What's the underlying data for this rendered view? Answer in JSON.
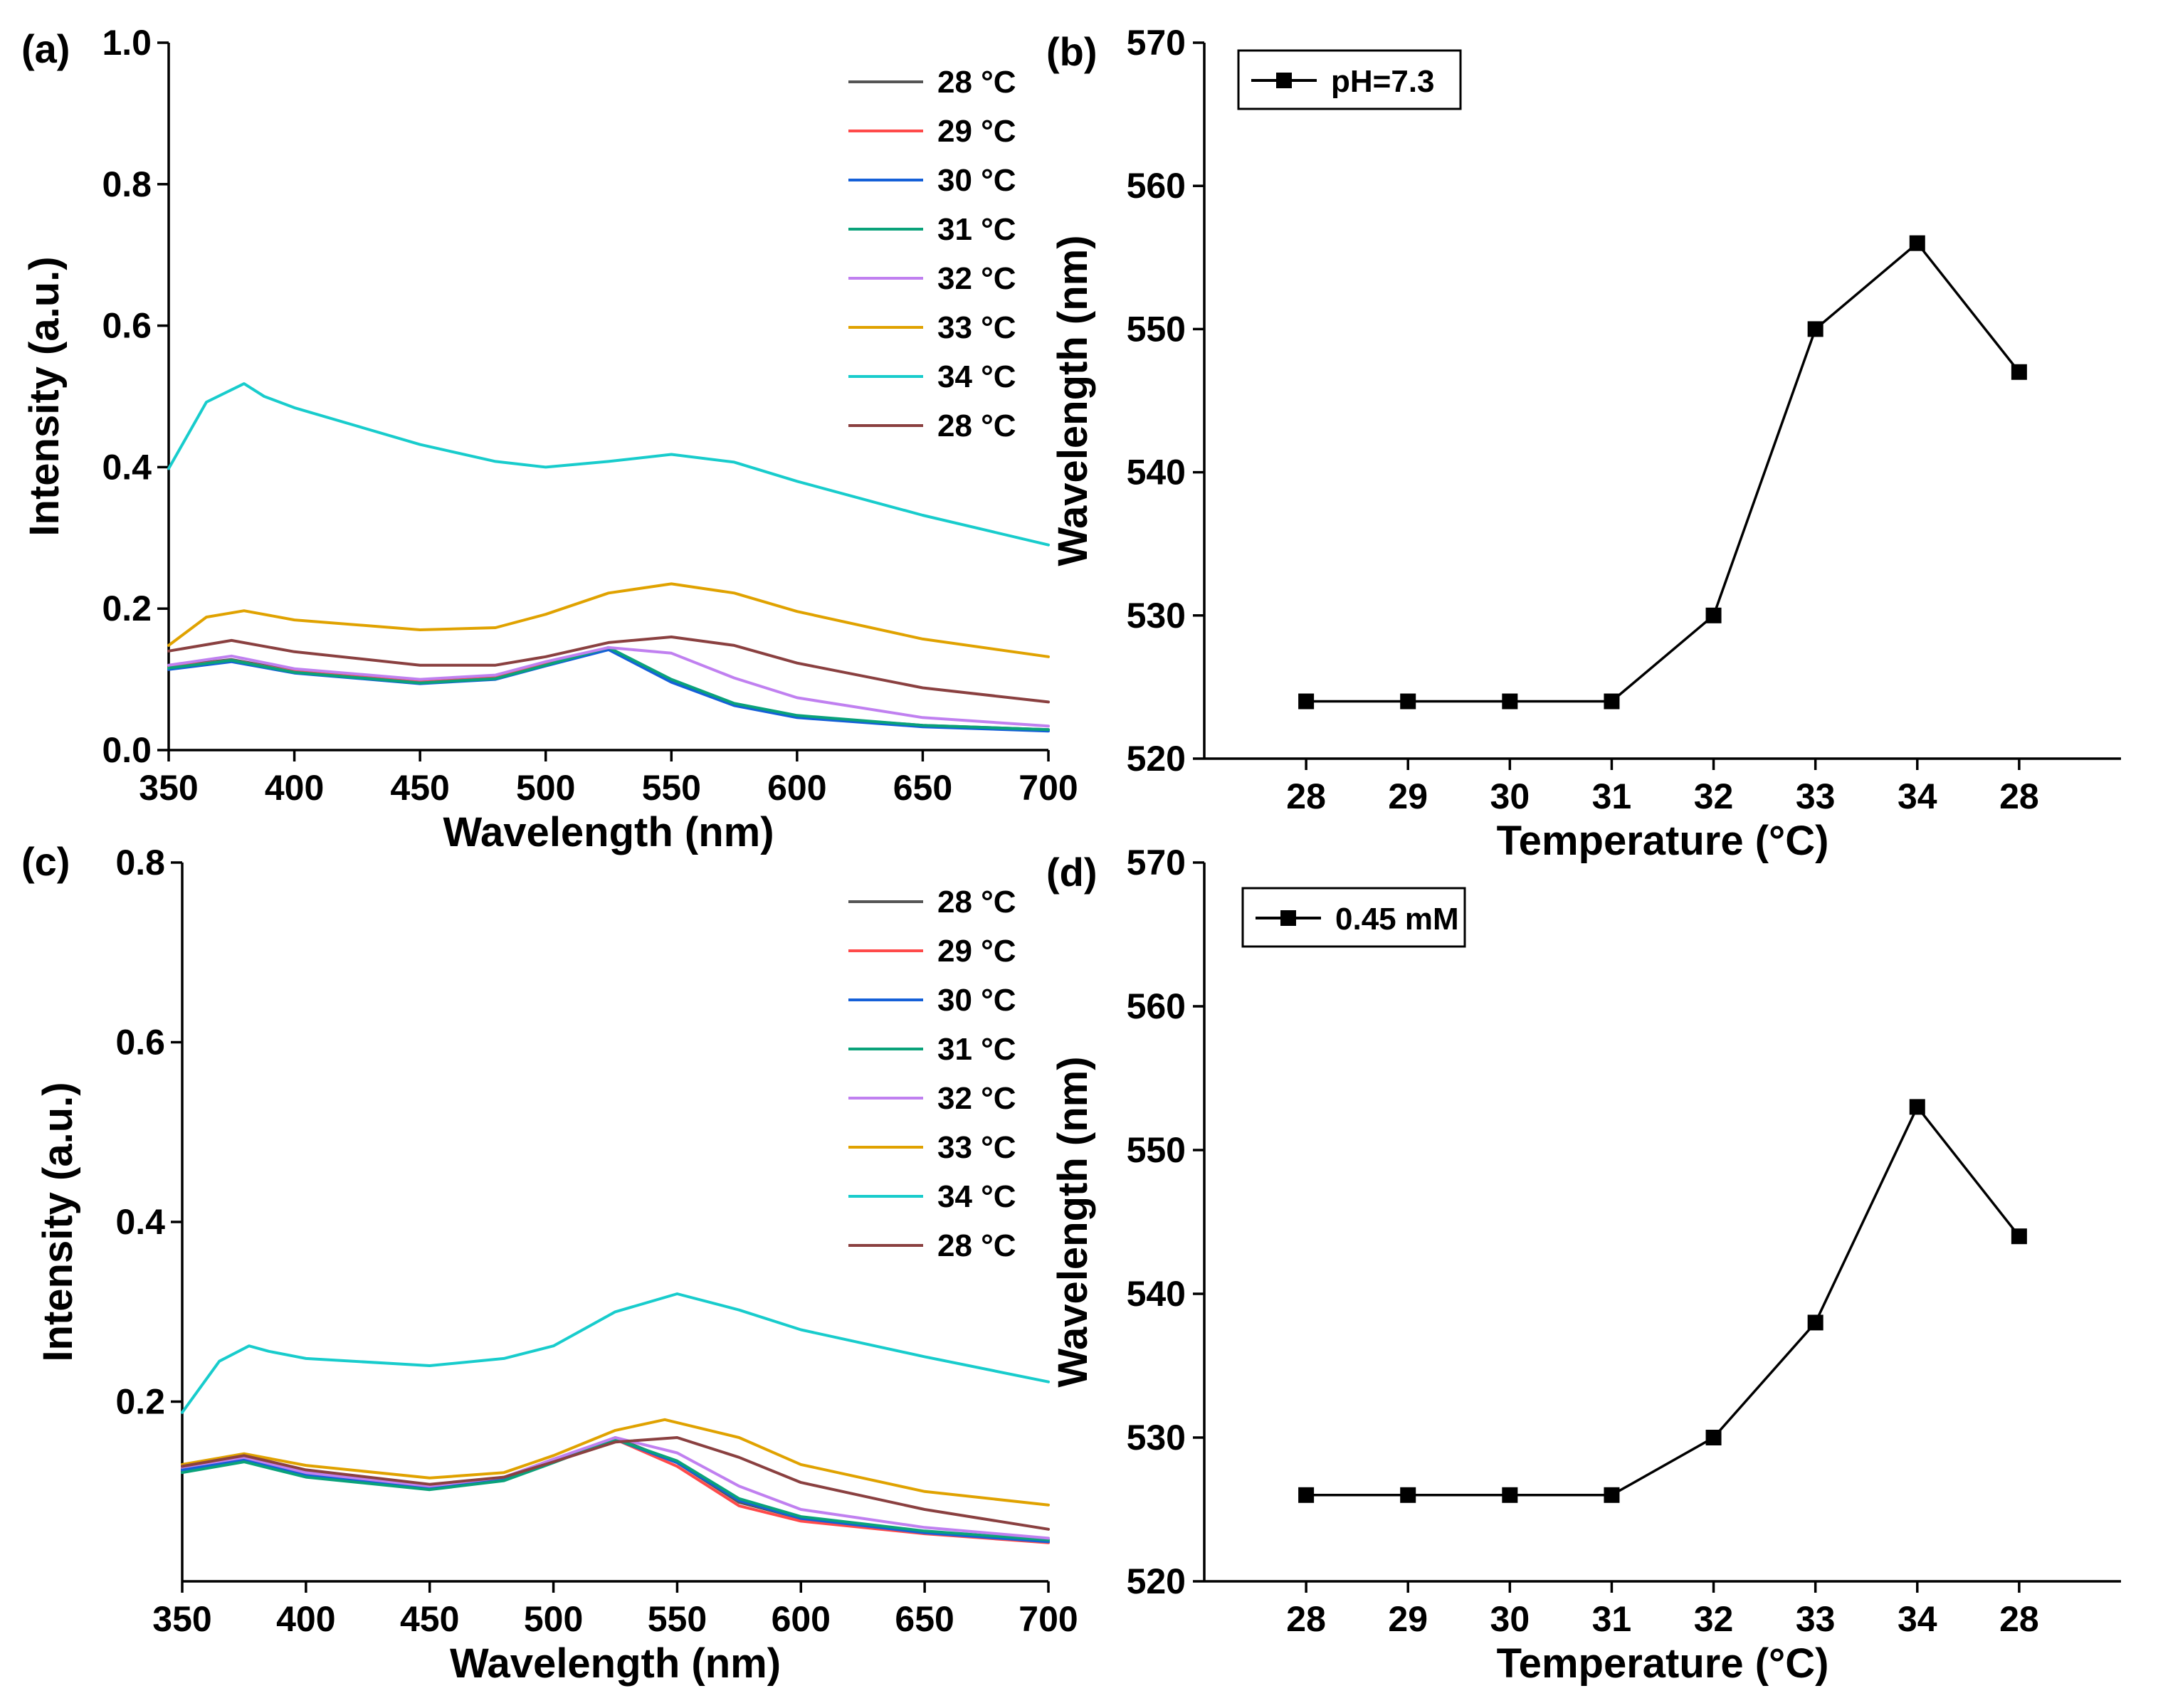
{
  "chart_data": [
    {
      "panel": "(a)",
      "type": "line",
      "xlabel": "Wavelength (nm)",
      "ylabel": "Intensity (a.u.)",
      "xlim": [
        350,
        700
      ],
      "ylim": [
        0.0,
        1.0
      ],
      "xticks": [
        350,
        400,
        450,
        500,
        550,
        600,
        650,
        700
      ],
      "yticks": [
        0.0,
        0.2,
        0.4,
        0.6,
        0.8,
        1.0
      ],
      "ytick_labels": [
        "0.0",
        "0.2",
        "0.4",
        "0.6",
        "0.8",
        "1.0"
      ],
      "legend_position": "top-right",
      "series": [
        {
          "name": "28 °C",
          "color": "#555555",
          "x": [
            350,
            375,
            400,
            450,
            480,
            500,
            525,
            550,
            575,
            600,
            650,
            700
          ],
          "y": [
            0.118,
            0.128,
            0.112,
            0.097,
            0.103,
            0.122,
            0.145,
            0.098,
            0.065,
            0.048,
            0.035,
            0.029
          ]
        },
        {
          "name": "29 °C",
          "color": "#ff4a4a",
          "x": [
            350,
            375,
            400,
            450,
            480,
            500,
            525,
            550,
            575,
            600,
            650,
            700
          ],
          "y": [
            0.117,
            0.127,
            0.111,
            0.096,
            0.102,
            0.121,
            0.144,
            0.097,
            0.064,
            0.047,
            0.034,
            0.028
          ]
        },
        {
          "name": "30 °C",
          "color": "#1560d8",
          "x": [
            350,
            375,
            400,
            450,
            480,
            500,
            525,
            550,
            575,
            600,
            650,
            700
          ],
          "y": [
            0.114,
            0.125,
            0.109,
            0.094,
            0.1,
            0.119,
            0.142,
            0.096,
            0.063,
            0.046,
            0.033,
            0.027
          ]
        },
        {
          "name": "31 °C",
          "color": "#0aa27a",
          "x": [
            350,
            375,
            400,
            450,
            480,
            500,
            525,
            550,
            575,
            600,
            650,
            700
          ],
          "y": [
            0.116,
            0.127,
            0.11,
            0.095,
            0.101,
            0.12,
            0.145,
            0.1,
            0.066,
            0.049,
            0.035,
            0.029
          ]
        },
        {
          "name": "32 °C",
          "color": "#c080f0",
          "x": [
            350,
            375,
            400,
            450,
            480,
            500,
            525,
            550,
            575,
            600,
            650,
            700
          ],
          "y": [
            0.12,
            0.133,
            0.115,
            0.1,
            0.106,
            0.125,
            0.145,
            0.137,
            0.102,
            0.074,
            0.046,
            0.034
          ]
        },
        {
          "name": "33 °C",
          "color": "#e0a200",
          "x": [
            350,
            365,
            380,
            400,
            450,
            480,
            500,
            525,
            550,
            575,
            600,
            650,
            700
          ],
          "y": [
            0.148,
            0.188,
            0.197,
            0.184,
            0.17,
            0.173,
            0.192,
            0.222,
            0.235,
            0.222,
            0.196,
            0.157,
            0.132
          ]
        },
        {
          "name": "34 °C",
          "color": "#18cccc",
          "x": [
            350,
            365,
            380,
            388,
            400,
            450,
            480,
            500,
            525,
            550,
            575,
            600,
            650,
            700
          ],
          "y": [
            0.398,
            0.492,
            0.518,
            0.5,
            0.484,
            0.432,
            0.408,
            0.4,
            0.408,
            0.418,
            0.407,
            0.38,
            0.332,
            0.29
          ]
        },
        {
          "name": "28 °C",
          "color": "#8a4040",
          "x": [
            350,
            375,
            400,
            450,
            480,
            500,
            525,
            550,
            575,
            600,
            650,
            700
          ],
          "y": [
            0.14,
            0.155,
            0.139,
            0.12,
            0.12,
            0.132,
            0.152,
            0.16,
            0.148,
            0.123,
            0.088,
            0.068
          ]
        }
      ]
    },
    {
      "panel": "(b)",
      "type": "line",
      "xlabel": "Temperature (°C)",
      "ylabel": "Wavelength (nm)",
      "ylim": [
        520,
        570
      ],
      "yticks": [
        520,
        530,
        540,
        550,
        560,
        570
      ],
      "categories": [
        "28",
        "29",
        "30",
        "31",
        "32",
        "33",
        "34",
        "28"
      ],
      "legend_position": "top-left",
      "series": [
        {
          "name": "pH=7.3",
          "color": "#000000",
          "values": [
            524,
            524,
            524,
            524,
            530,
            550,
            556,
            547
          ]
        }
      ]
    },
    {
      "panel": "(c)",
      "type": "line",
      "xlabel": "Wavelength (nm)",
      "ylabel": "Intensity (a.u.)",
      "xlim": [
        350,
        700
      ],
      "ylim": [
        0.0,
        0.8
      ],
      "xticks": [
        350,
        400,
        450,
        500,
        550,
        600,
        650,
        700
      ],
      "yticks": [
        0.2,
        0.4,
        0.6,
        0.8
      ],
      "ytick_labels": [
        "0.2",
        "0.4",
        "0.6",
        "0.8"
      ],
      "legend_position": "top-right",
      "series": [
        {
          "name": "28 °C",
          "color": "#555555",
          "x": [
            350,
            375,
            400,
            450,
            480,
            500,
            525,
            550,
            575,
            600,
            650,
            700
          ],
          "y": [
            0.126,
            0.137,
            0.12,
            0.105,
            0.115,
            0.135,
            0.16,
            0.132,
            0.088,
            0.07,
            0.055,
            0.045
          ]
        },
        {
          "name": "29 °C",
          "color": "#ff4a4a",
          "x": [
            350,
            375,
            400,
            450,
            480,
            500,
            525,
            550,
            575,
            600,
            650,
            700
          ],
          "y": [
            0.125,
            0.136,
            0.119,
            0.104,
            0.114,
            0.134,
            0.158,
            0.128,
            0.084,
            0.067,
            0.053,
            0.043
          ]
        },
        {
          "name": "30 °C",
          "color": "#1560d8",
          "x": [
            350,
            375,
            400,
            450,
            480,
            500,
            525,
            550,
            575,
            600,
            650,
            700
          ],
          "y": [
            0.124,
            0.135,
            0.118,
            0.103,
            0.113,
            0.133,
            0.158,
            0.132,
            0.09,
            0.07,
            0.054,
            0.044
          ]
        },
        {
          "name": "31 °C",
          "color": "#0aa27a",
          "x": [
            350,
            375,
            400,
            450,
            480,
            500,
            525,
            550,
            575,
            600,
            650,
            700
          ],
          "y": [
            0.121,
            0.133,
            0.116,
            0.102,
            0.112,
            0.132,
            0.158,
            0.134,
            0.092,
            0.072,
            0.056,
            0.046
          ]
        },
        {
          "name": "32 °C",
          "color": "#c080f0",
          "x": [
            350,
            375,
            400,
            450,
            480,
            500,
            525,
            550,
            575,
            600,
            650,
            700
          ],
          "y": [
            0.127,
            0.138,
            0.121,
            0.106,
            0.116,
            0.136,
            0.16,
            0.143,
            0.106,
            0.08,
            0.06,
            0.048
          ]
        },
        {
          "name": "33 °C",
          "color": "#e0a200",
          "x": [
            350,
            375,
            400,
            450,
            480,
            500,
            525,
            545,
            575,
            600,
            650,
            700
          ],
          "y": [
            0.13,
            0.142,
            0.129,
            0.115,
            0.121,
            0.14,
            0.168,
            0.18,
            0.16,
            0.13,
            0.1,
            0.085
          ]
        },
        {
          "name": "34 °C",
          "color": "#18cccc",
          "x": [
            350,
            365,
            377,
            385,
            400,
            450,
            480,
            500,
            525,
            550,
            575,
            600,
            650,
            700
          ],
          "y": [
            0.188,
            0.245,
            0.262,
            0.256,
            0.248,
            0.24,
            0.248,
            0.262,
            0.3,
            0.32,
            0.302,
            0.28,
            0.25,
            0.222
          ]
        },
        {
          "name": "28 °C",
          "color": "#8a4040",
          "x": [
            350,
            375,
            400,
            450,
            480,
            500,
            525,
            550,
            575,
            600,
            650,
            700
          ],
          "y": [
            0.128,
            0.14,
            0.124,
            0.108,
            0.116,
            0.133,
            0.155,
            0.16,
            0.138,
            0.11,
            0.08,
            0.058
          ]
        }
      ]
    },
    {
      "panel": "(d)",
      "type": "line",
      "xlabel": "Temperature (°C)",
      "ylabel": "Wavelength (nm)",
      "ylim": [
        520,
        570
      ],
      "yticks": [
        520,
        530,
        540,
        550,
        560,
        570
      ],
      "categories": [
        "28",
        "29",
        "30",
        "31",
        "32",
        "33",
        "34",
        "28"
      ],
      "legend_position": "top-left",
      "series": [
        {
          "name": "0.45 mM",
          "color": "#000000",
          "values": [
            526,
            526,
            526,
            526,
            530,
            538,
            553,
            544
          ]
        }
      ]
    }
  ]
}
